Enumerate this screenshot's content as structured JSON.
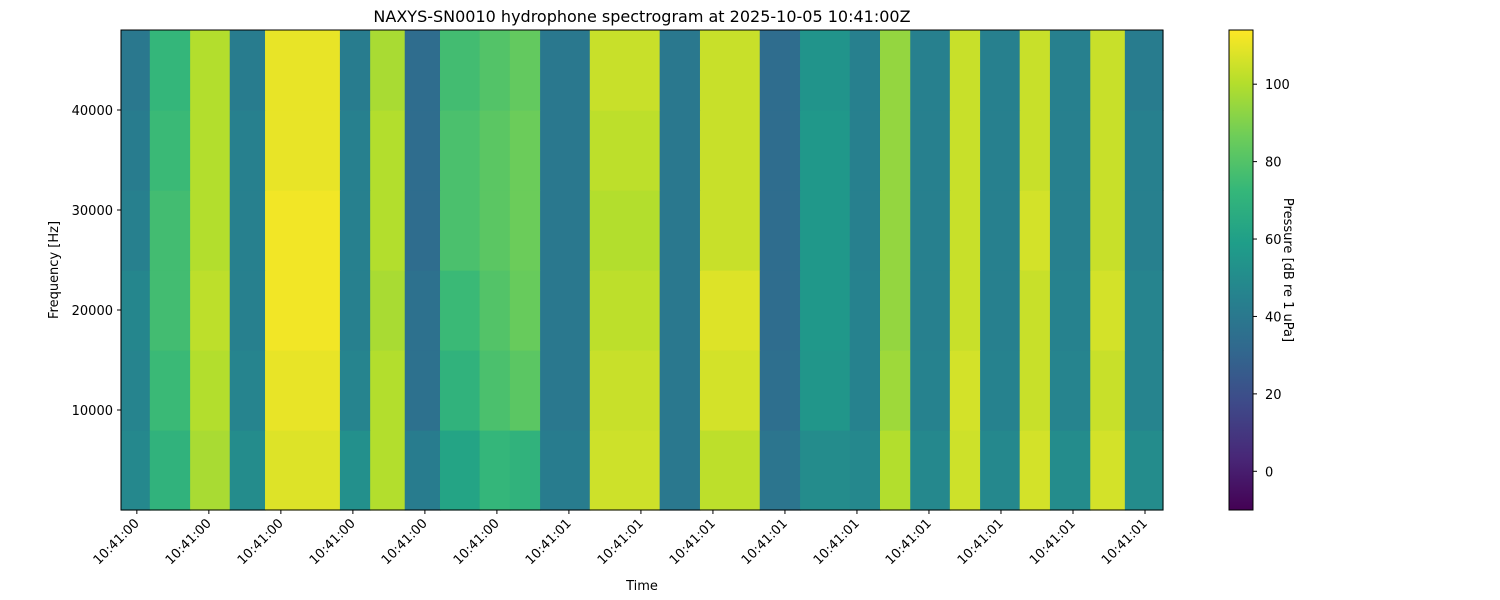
{
  "chart_data": {
    "type": "heatmap",
    "title": "NAXYS-SN0010 hydrophone spectrogram at 2025-10-05 10:41:00Z",
    "x_label": "Time",
    "y_label": "Frequency [Hz]",
    "colorbar_label": "Pressure [dB re 1 uPa]",
    "colormap": "viridis",
    "x_bins": [
      0.378,
      0.418,
      0.474,
      0.529,
      0.578,
      0.682,
      0.724,
      0.772,
      0.821,
      0.876,
      0.918,
      0.96,
      1.029,
      1.126,
      1.182,
      1.265,
      1.321,
      1.39,
      1.432,
      1.474,
      1.529,
      1.571,
      1.626,
      1.668,
      1.724,
      1.772,
      1.825
    ],
    "y_bins": [
      0,
      8000,
      16000,
      24000,
      32000,
      40000,
      48000
    ],
    "z": [
      [
        48,
        70,
        98,
        50,
        108,
        52,
        100,
        42,
        62,
        72,
        70,
        42,
        105,
        40,
        102,
        38,
        50,
        48,
        100,
        48,
        105,
        48,
        106,
        50,
        106,
        50
      ],
      [
        46,
        74,
        100,
        46,
        110,
        46,
        100,
        36,
        70,
        78,
        82,
        40,
        104,
        40,
        106,
        35,
        55,
        45,
        96,
        45,
        106,
        45,
        104,
        46,
        104,
        46
      ],
      [
        47,
        76,
        102,
        44,
        112,
        44,
        98,
        36,
        74,
        80,
        85,
        40,
        102,
        40,
        108,
        34,
        56,
        45,
        94,
        44,
        104,
        44,
        104,
        45,
        106,
        46
      ],
      [
        44,
        76,
        100,
        44,
        112,
        44,
        100,
        34,
        78,
        82,
        86,
        40,
        100,
        40,
        104,
        34,
        56,
        44,
        94,
        44,
        104,
        44,
        106,
        44,
        104,
        44
      ],
      [
        42,
        74,
        100,
        44,
        110,
        44,
        100,
        34,
        78,
        82,
        86,
        40,
        102,
        40,
        104,
        34,
        56,
        44,
        94,
        44,
        104,
        44,
        104,
        44,
        104,
        44
      ],
      [
        40,
        72,
        100,
        42,
        110,
        42,
        98,
        34,
        76,
        80,
        84,
        40,
        104,
        40,
        104,
        34,
        54,
        44,
        94,
        44,
        104,
        44,
        104,
        44,
        104,
        42
      ]
    ],
    "xlim": [
      0.378,
      1.825
    ],
    "xticks": [
      {
        "value": 0.4,
        "label": "10:41:00"
      },
      {
        "value": 0.5,
        "label": "10:41:00"
      },
      {
        "value": 0.6,
        "label": "10:41:00"
      },
      {
        "value": 0.7,
        "label": "10:41:00"
      },
      {
        "value": 0.8,
        "label": "10:41:00"
      },
      {
        "value": 0.9,
        "label": "10:41:00"
      },
      {
        "value": 1.0,
        "label": "10:41:01"
      },
      {
        "value": 1.1,
        "label": "10:41:01"
      },
      {
        "value": 1.2,
        "label": "10:41:01"
      },
      {
        "value": 1.3,
        "label": "10:41:01"
      },
      {
        "value": 1.4,
        "label": "10:41:01"
      },
      {
        "value": 1.5,
        "label": "10:41:01"
      },
      {
        "value": 1.6,
        "label": "10:41:01"
      },
      {
        "value": 1.7,
        "label": "10:41:01"
      },
      {
        "value": 1.8,
        "label": "10:41:01"
      }
    ],
    "ylim": [
      0,
      48000
    ],
    "yticks": [
      10000,
      20000,
      30000,
      40000
    ],
    "clim": [
      -10,
      114
    ],
    "cticks": [
      0,
      20,
      40,
      60,
      80,
      100
    ]
  }
}
